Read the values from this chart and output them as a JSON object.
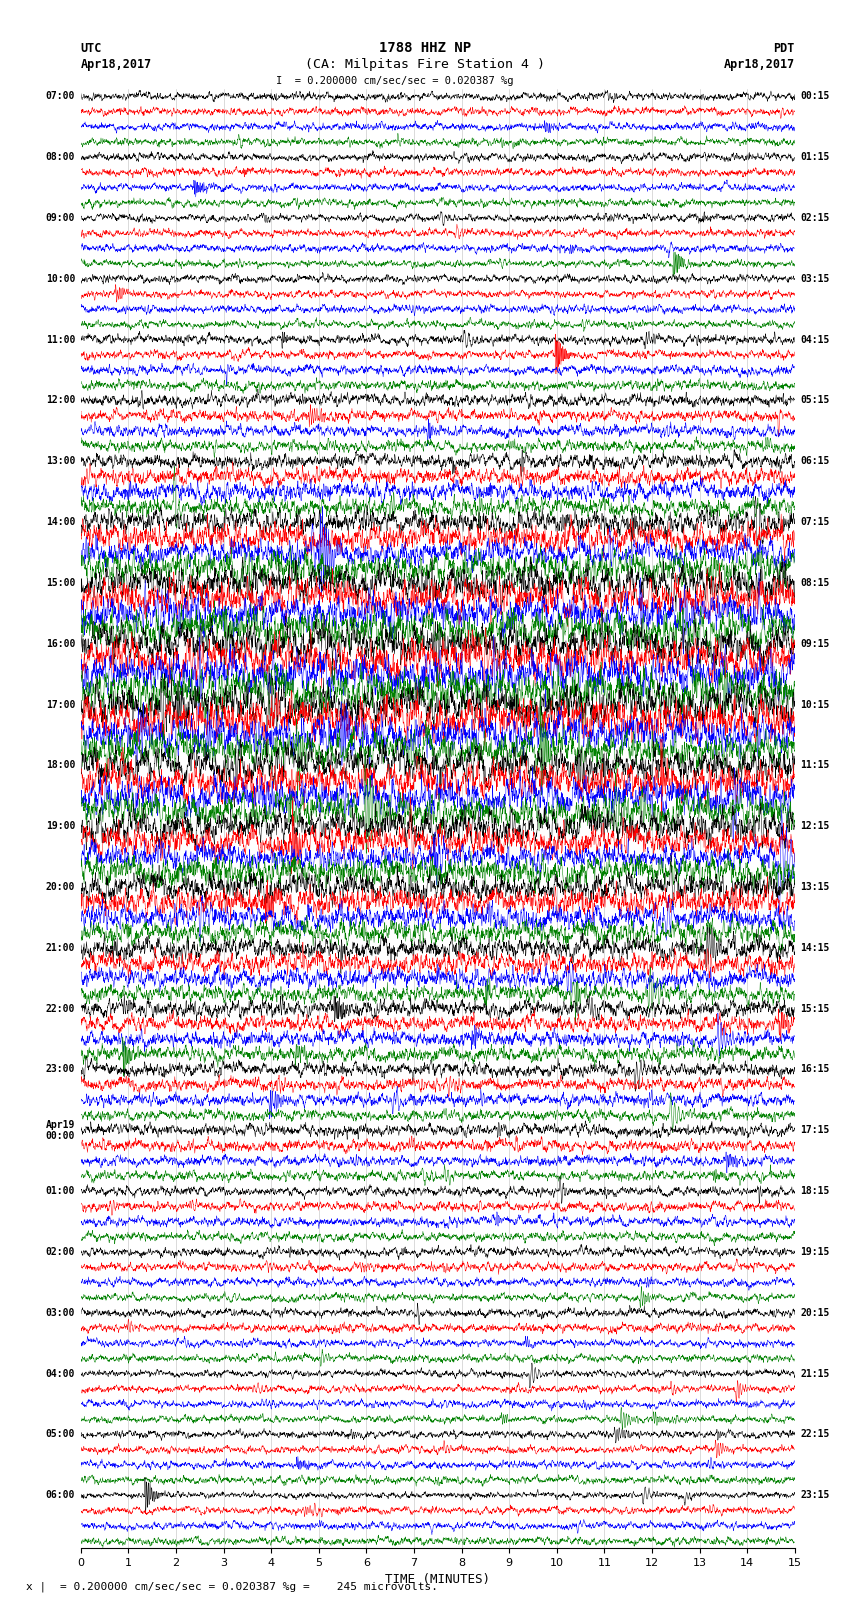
{
  "title_line1": "1788 HHZ NP",
  "title_line2": "(CA: Milpitas Fire Station 4 )",
  "scale_label": "I = 0.200000 cm/sec/sec = 0.020387 %g",
  "left_label_top": "UTC",
  "left_label_date": "Apr18,2017",
  "right_label_top": "PDT",
  "right_label_date": "Apr18,2017",
  "bottom_label": "TIME (MINUTES)",
  "footer_label": "= 0.200000 cm/sec/sec = 0.020387 %g =    245 microvolts.",
  "xlim": [
    0,
    15
  ],
  "xticks": [
    0,
    1,
    2,
    3,
    4,
    5,
    6,
    7,
    8,
    9,
    10,
    11,
    12,
    13,
    14,
    15
  ],
  "num_traces": 96,
  "colors_cycle": [
    "black",
    "red",
    "blue",
    "green"
  ],
  "background_color": "#ffffff",
  "fig_width": 8.5,
  "fig_height": 16.13,
  "left_times": [
    "07:00",
    "",
    "",
    "",
    "08:00",
    "",
    "",
    "",
    "09:00",
    "",
    "",
    "",
    "10:00",
    "",
    "",
    "",
    "11:00",
    "",
    "",
    "",
    "12:00",
    "",
    "",
    "",
    "13:00",
    "",
    "",
    "",
    "14:00",
    "",
    "",
    "",
    "15:00",
    "",
    "",
    "",
    "16:00",
    "",
    "",
    "",
    "17:00",
    "",
    "",
    "",
    "18:00",
    "",
    "",
    "",
    "19:00",
    "",
    "",
    "",
    "20:00",
    "",
    "",
    "",
    "21:00",
    "",
    "",
    "",
    "22:00",
    "",
    "",
    "",
    "23:00",
    "",
    "",
    "",
    "Apr19\n00:00",
    "",
    "",
    "",
    "01:00",
    "",
    "",
    "",
    "02:00",
    "",
    "",
    "",
    "03:00",
    "",
    "",
    "",
    "04:00",
    "",
    "",
    "",
    "05:00",
    "",
    "",
    "",
    "06:00",
    "",
    ""
  ],
  "right_times": [
    "00:15",
    "",
    "",
    "",
    "01:15",
    "",
    "",
    "",
    "02:15",
    "",
    "",
    "",
    "03:15",
    "",
    "",
    "",
    "04:15",
    "",
    "",
    "",
    "05:15",
    "",
    "",
    "",
    "06:15",
    "",
    "",
    "",
    "07:15",
    "",
    "",
    "",
    "08:15",
    "",
    "",
    "",
    "09:15",
    "",
    "",
    "",
    "10:15",
    "",
    "",
    "",
    "11:15",
    "",
    "",
    "",
    "12:15",
    "",
    "",
    "",
    "13:15",
    "",
    "",
    "",
    "14:15",
    "",
    "",
    "",
    "15:15",
    "",
    "",
    "",
    "16:15",
    "",
    "",
    "",
    "17:15",
    "",
    "",
    "",
    "18:15",
    "",
    "",
    "",
    "19:15",
    "",
    "",
    "",
    "20:15",
    "",
    "",
    "",
    "21:15",
    "",
    "",
    "",
    "22:15",
    "",
    "",
    "",
    "23:15",
    "",
    ""
  ],
  "amplitude_profile": [
    0.12,
    0.12,
    0.12,
    0.12,
    0.12,
    0.12,
    0.12,
    0.12,
    0.12,
    0.12,
    0.12,
    0.12,
    0.12,
    0.12,
    0.12,
    0.12,
    0.15,
    0.15,
    0.15,
    0.15,
    0.18,
    0.18,
    0.18,
    0.18,
    0.22,
    0.25,
    0.28,
    0.3,
    0.38,
    0.42,
    0.45,
    0.48,
    0.52,
    0.55,
    0.55,
    0.55,
    0.58,
    0.6,
    0.62,
    0.62,
    0.62,
    0.6,
    0.58,
    0.56,
    0.55,
    0.55,
    0.55,
    0.55,
    0.5,
    0.48,
    0.46,
    0.44,
    0.42,
    0.4,
    0.38,
    0.36,
    0.34,
    0.32,
    0.3,
    0.28,
    0.26,
    0.25,
    0.24,
    0.24,
    0.22,
    0.2,
    0.2,
    0.18,
    0.18,
    0.18,
    0.16,
    0.16,
    0.15,
    0.15,
    0.15,
    0.14,
    0.14,
    0.14,
    0.13,
    0.13,
    0.13,
    0.13,
    0.12,
    0.12,
    0.12,
    0.12,
    0.12,
    0.12,
    0.12,
    0.12,
    0.12,
    0.12,
    0.12,
    0.12,
    0.12,
    0.12
  ]
}
